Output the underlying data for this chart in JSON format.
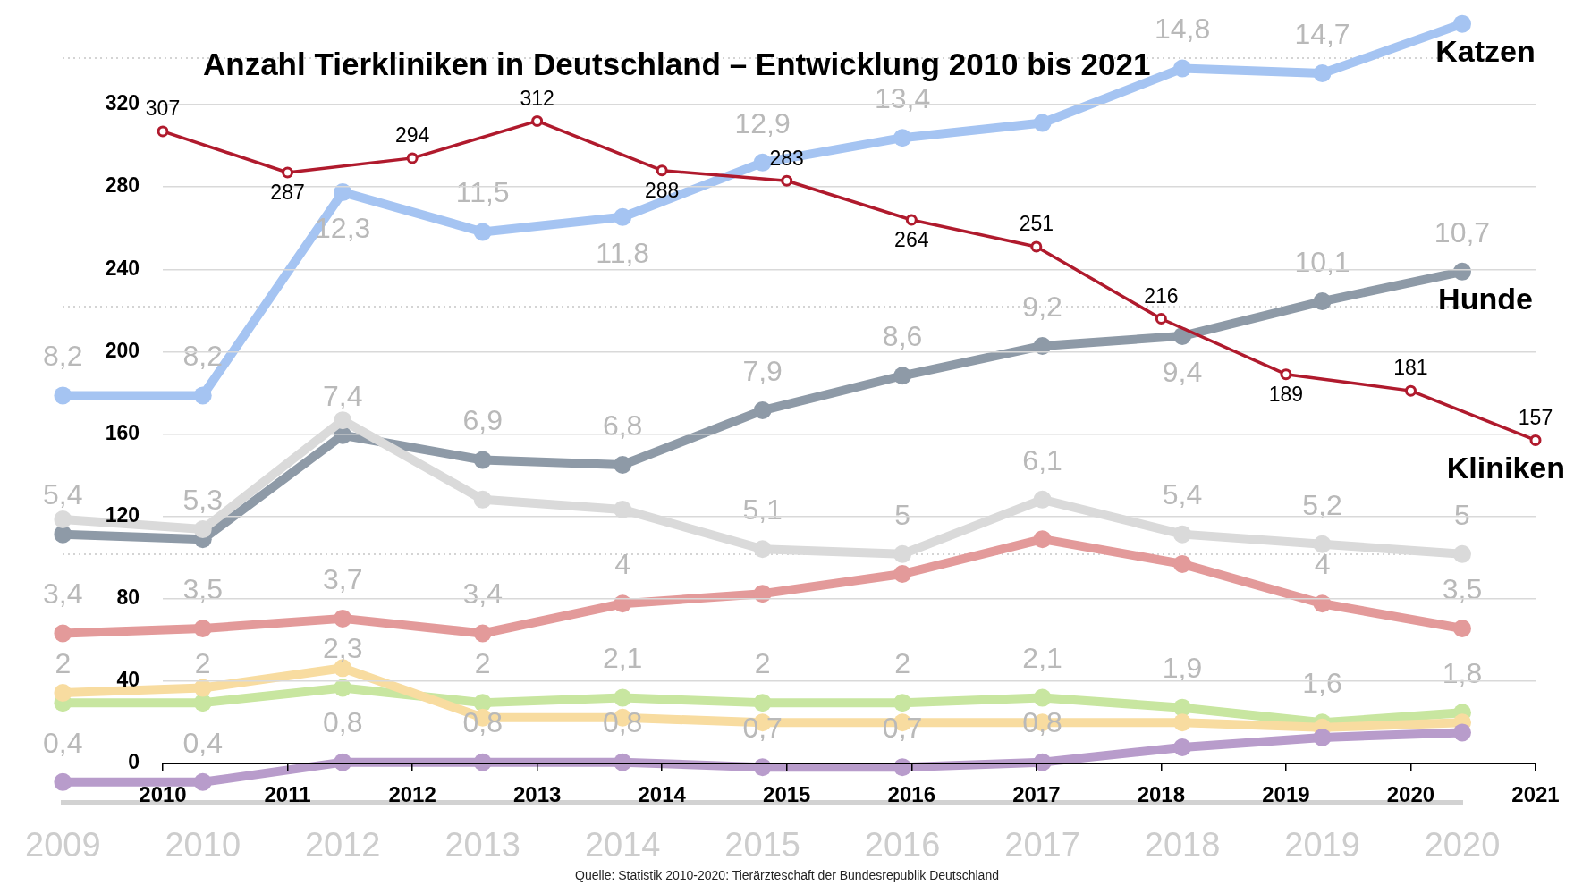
{
  "chart_data": [
    {
      "type": "line",
      "categories": [
        "2009",
        "2010",
        "2012",
        "2013",
        "2014",
        "2015",
        "2016",
        "2017",
        "2018",
        "2019",
        "2020"
      ],
      "yticks": [
        {
          "value": 5,
          "label": null
        },
        {
          "value": 10,
          "label": null
        },
        {
          "value": 15,
          "label": null
        }
      ],
      "grid": "y",
      "tick_labels": "x",
      "marker": "circle",
      "series": [
        {
          "name": "Katzen",
          "color": "#a5c4f2",
          "values": [
            8.2,
            8.2,
            12.3,
            11.5,
            11.8,
            12.9,
            13.4,
            13.7,
            14.8,
            14.7,
            15.7
          ],
          "value_labels": [
            "8,2",
            "8,2",
            "12,3",
            "11,5",
            "11,8",
            "12,9",
            "13,4",
            null,
            "14,8",
            "14,7",
            null
          ]
        },
        {
          "name": "Hunde",
          "color": "#8e9aa7",
          "values": [
            5.4,
            5.3,
            7.4,
            6.9,
            6.8,
            7.9,
            8.6,
            9.2,
            9.4,
            10.1,
            10.7
          ],
          "value_labels": [
            "5,4",
            "5,3",
            "7,4",
            "6,9",
            "6,8",
            "7,9",
            "8,6",
            "9,2",
            "9,4",
            "10,1",
            "10,7"
          ]
        },
        {
          "color": "#dadada",
          "values": [
            5.7,
            5.5,
            7.7,
            6.1,
            5.9,
            5.1,
            5.0,
            6.1,
            5.4,
            5.2,
            5.0
          ],
          "value_labels": [
            null,
            null,
            null,
            null,
            null,
            "5,1",
            "5",
            "6,1",
            "5,4",
            "5,2",
            "5"
          ]
        },
        {
          "color": "#e39a9a",
          "values": [
            3.4,
            3.5,
            3.7,
            3.4,
            4,
            4.2,
            4.6,
            5.3,
            4.8,
            4,
            3.5
          ],
          "value_labels": [
            "3,4",
            "3,5",
            "3,7",
            "3,4",
            "4",
            null,
            null,
            null,
            null,
            "4",
            "3,5"
          ]
        },
        {
          "color": "#c8e6a0",
          "values": [
            2,
            2,
            2.3,
            2,
            2.1,
            2,
            2,
            2.1,
            1.9,
            1.6,
            1.8
          ],
          "value_labels": [
            "2",
            "2",
            "2,3",
            "2",
            "2,1",
            "2",
            "2",
            "2,1",
            "1,9",
            "1,6",
            "1,8"
          ]
        },
        {
          "color": "#f8dca0",
          "values": [
            2.2,
            2.3,
            2.7,
            1.7,
            1.7,
            1.6,
            1.6,
            1.6,
            1.6,
            1.5,
            1.6
          ]
        },
        {
          "color": "#b89ccb",
          "values": [
            0.4,
            0.4,
            0.8,
            0.8,
            0.8,
            0.7,
            0.7,
            0.8,
            1.1,
            1.3,
            1.4
          ],
          "value_labels": [
            "0,4",
            "0,4",
            "0,8",
            "0,8",
            "0,8",
            "0,7",
            "0,7",
            "0,8",
            null,
            null,
            null
          ]
        }
      ]
    },
    {
      "type": "line",
      "title": "Anzahl Tierkliniken in Deutschland – Entwicklung 2010 bis 2021",
      "categories": [
        "2010",
        "2011",
        "2012",
        "2013",
        "2014",
        "2015",
        "2016",
        "2017",
        "2018",
        "2019",
        "2020",
        "2021"
      ],
      "ylim": [
        0,
        320
      ],
      "yticks": [
        0,
        40,
        80,
        120,
        160,
        200,
        240,
        280,
        320
      ],
      "grid": "y",
      "marker": "circle",
      "data_labels": true,
      "series": [
        {
          "name": "Kliniken",
          "color": "#b01a2d",
          "values": [
            307,
            287,
            294,
            312,
            288,
            283,
            264,
            251,
            216,
            189,
            181,
            157
          ]
        }
      ],
      "annotations": [
        "Quelle: Statistik 2010-2020: Tierärzteschaft der Bundesrepublik Deutschland"
      ]
    }
  ]
}
